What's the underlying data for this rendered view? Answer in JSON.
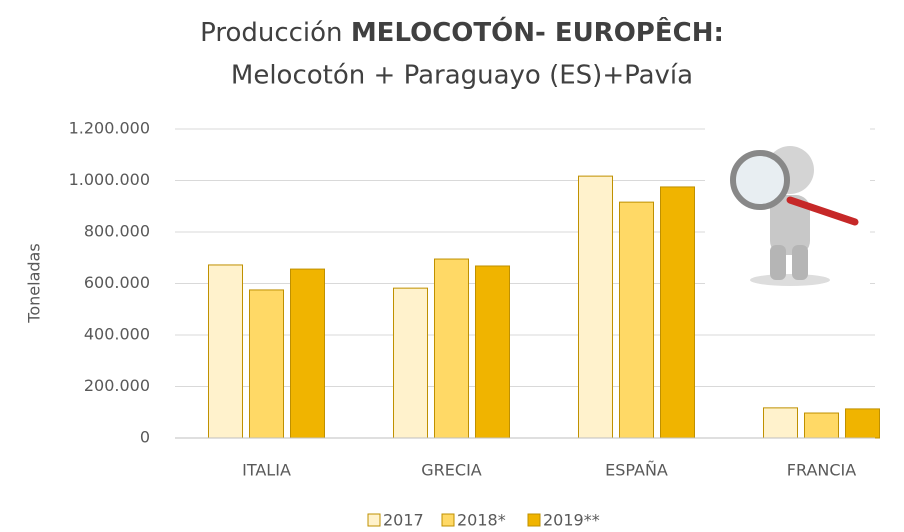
{
  "chart_data": {
    "type": "bar",
    "title": [
      "Producción",
      "MELOCOTÓN- EUROPÊCH:"
    ],
    "subtitle": "Melocotón + Paraguayo (ES)+Pavía",
    "y_label": "Toneladas",
    "categories": [
      "ITALIA",
      "GRECIA",
      "ESPAÑA",
      "FRANCIA"
    ],
    "series": [
      {
        "name": "2017",
        "color": "#fff2cc",
        "values": [
          672000,
          582000,
          1017000,
          117000
        ]
      },
      {
        "name": "2018*",
        "color": "#ffd966",
        "values": [
          575000,
          695000,
          916000,
          97000
        ]
      },
      {
        "name": "2019**",
        "color": "#f0b400",
        "values": [
          656000,
          668000,
          975000,
          113000
        ]
      }
    ],
    "ylim": [
      0,
      1200000
    ],
    "yticks": [
      0,
      {
        "value": 200000,
        "label": "200.000"
      },
      {
        "value": 400000,
        "label": "400.000"
      },
      {
        "value": 600000,
        "label": "600.000"
      },
      {
        "value": 800000,
        "label": "800.000"
      },
      {
        "value": 1000000,
        "label": "1.000.000"
      },
      {
        "value": 1200000,
        "label": "1.200.000"
      }
    ],
    "grid": true,
    "legend": "bottom"
  }
}
